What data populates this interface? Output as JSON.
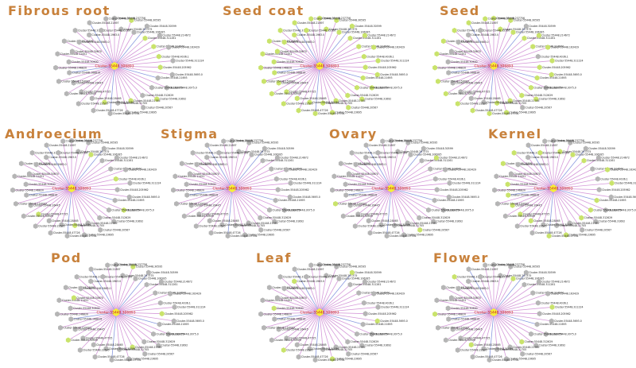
{
  "panels": [
    {
      "id": "fibrous-root",
      "title": "Fibrous root",
      "green": [
        2,
        5,
        7,
        9,
        11,
        16,
        19,
        23
      ]
    },
    {
      "id": "seed-coat",
      "title": "Seed coat",
      "green": [
        0,
        1,
        2,
        3,
        4,
        5,
        6,
        7,
        8,
        9,
        10,
        11,
        12,
        13,
        14,
        15,
        16,
        17,
        18,
        19,
        20,
        21,
        22,
        23,
        24,
        25,
        26,
        27,
        28,
        29,
        30,
        31,
        32,
        33,
        34,
        35,
        36,
        37,
        38,
        39,
        40,
        41,
        42
      ]
    },
    {
      "id": "seed",
      "title": "Seed",
      "green": [
        0,
        1,
        2,
        3,
        5,
        6,
        7,
        8,
        10,
        11,
        12,
        13,
        15,
        16,
        17,
        19,
        20,
        21,
        22,
        24,
        26,
        28,
        30,
        32,
        34,
        36,
        38,
        40,
        42
      ]
    },
    {
      "id": "androecium",
      "title": "Androecium",
      "green": [
        3,
        9,
        14,
        21,
        27
      ]
    },
    {
      "id": "stigma",
      "title": "Stigma",
      "green": []
    },
    {
      "id": "ovary",
      "title": "Ovary",
      "green": [
        6,
        18,
        30
      ]
    },
    {
      "id": "kernel",
      "title": "Kernel",
      "green": [
        1,
        3,
        5,
        8,
        10,
        13,
        15,
        17,
        20,
        22,
        25,
        27,
        29,
        31,
        33,
        36,
        38,
        41
      ]
    },
    {
      "id": "pod",
      "title": "Pod",
      "green": [
        2,
        11,
        19,
        28,
        35
      ]
    },
    {
      "id": "leaf",
      "title": "Leaf",
      "green": [
        4,
        12,
        20,
        26,
        33,
        39
      ]
    },
    {
      "id": "flower",
      "title": "Flower",
      "green": [
        3,
        10,
        17,
        25,
        32,
        38
      ]
    }
  ],
  "hub_label": "Cluster-55448.306893",
  "node_labels": [
    "Cluster-55448.237756",
    "Cluster-55448.297375",
    "Cluster-55448.30595",
    "Cluster-55448.106285",
    "Cluster-55448.30599",
    "Cluster-55448.311261",
    "Cluster-55448.214672",
    "Cluster-55448.214872",
    "Cluster-55448.163429",
    "Cluster-55448.4036.1",
    "Cluster-55448.311224",
    "Cluster-55448.205962",
    "Cluster-55448.5693.0",
    "Cluster-55448.21693",
    "Cluster-55448.3075.0",
    "Cluster-55448.163979",
    "Cluster-55448.31692",
    "Cluster-55448.312629",
    "Cluster-55448.20567",
    "Cluster-55448.21765",
    "Cluster-55448.23695",
    "Cluster-55448.31705",
    "Cluster-55448.17704",
    "Cluster-55448.30034",
    "Cluster-55448.47726",
    "Cluster-55448.28465",
    "Cluster-55448.22505",
    "Cluster-55448.47725",
    "Cluster-55448.30905",
    "Cluster-55448.26445",
    "Cluster-55448.159003",
    "Cluster-55448.168819",
    "Cluster-55448.146820",
    "Cluster-55448.30500",
    "Cluster-55448.11452",
    "Cluster-55448.30670",
    "Cluster-55448.25861",
    "Cluster-55448.5663.0",
    "Cluster-55448.31700",
    "Cluster-55448.1963.0",
    "Cluster-55448.21897",
    "Cluster-55448.32100",
    "Cluster-55448.30800"
  ],
  "colors": {
    "title": "#c8813b",
    "hub": "#f6ef3a",
    "node_grey": "#b5b5b5",
    "node_green": "#c9e36b",
    "edge": "#d59ad9",
    "hub_text": "#cc2222"
  }
}
